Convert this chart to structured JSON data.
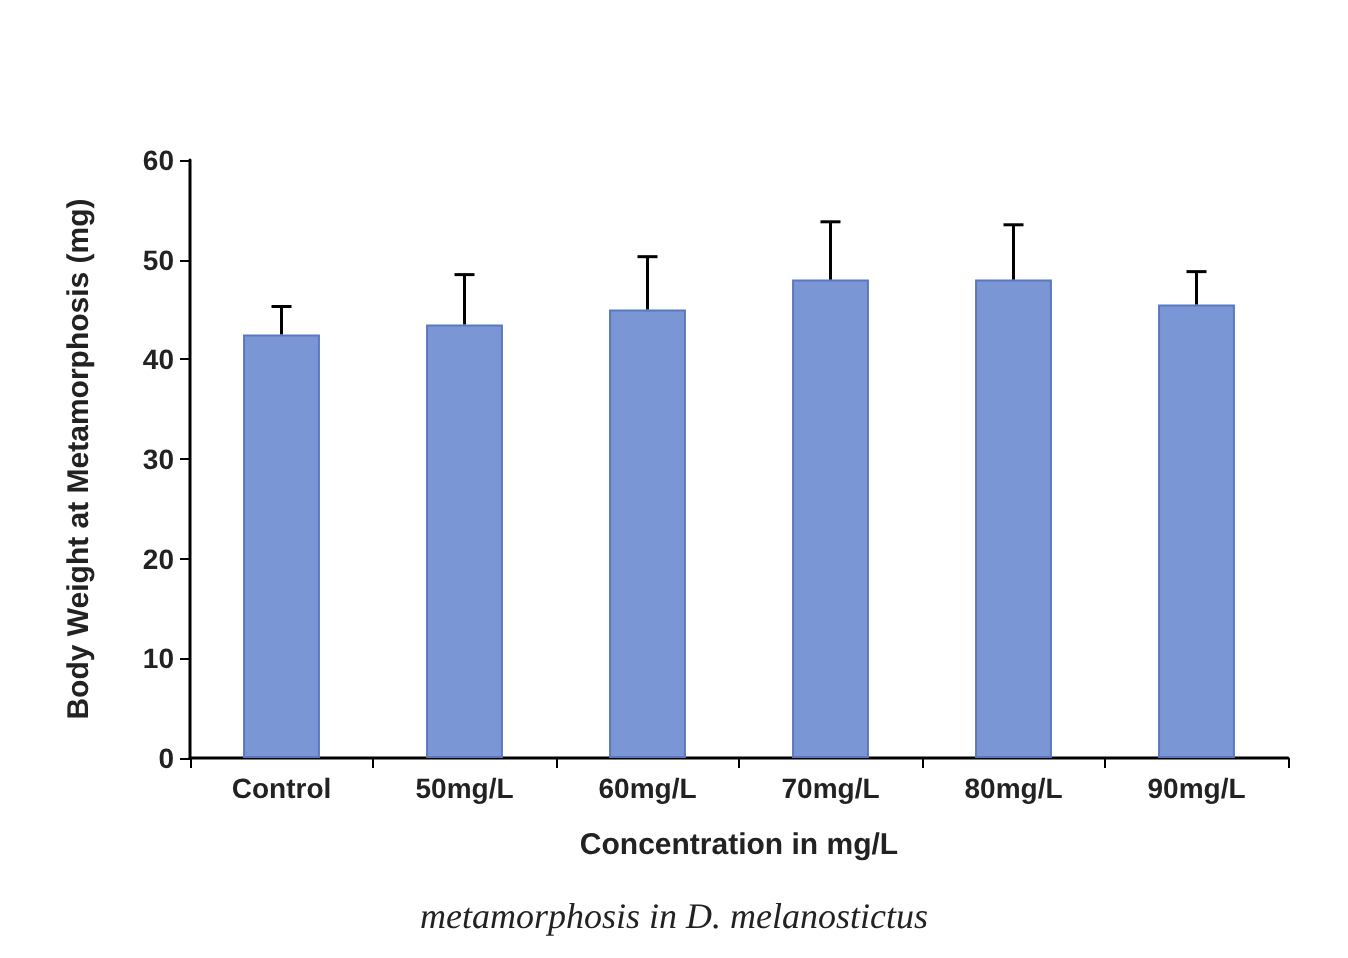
{
  "chart_data": {
    "type": "bar",
    "xlabel": "Concentration in mg/L",
    "ylabel": "Body Weight at Metamorphosis (mg)",
    "categories": [
      "Control",
      "50mg/L",
      "60mg/L",
      "70mg/L",
      "80mg/L",
      "90mg/L"
    ],
    "values": [
      42.5,
      43.5,
      45,
      48,
      48,
      45.5
    ],
    "errors": [
      [
        42.5,
        45.3
      ],
      [
        43.5,
        48.5
      ],
      [
        45,
        50.3
      ],
      [
        48,
        53.8
      ],
      [
        48,
        53.5
      ],
      [
        45.5,
        48.8
      ]
    ],
    "color": "#7b96d4",
    "ylim": [
      0,
      60
    ],
    "yticks": [
      0,
      10,
      20,
      30,
      40,
      50,
      60
    ],
    "grid": false,
    "annotations": [
      "metamorphosis in D. melanostictus"
    ]
  }
}
